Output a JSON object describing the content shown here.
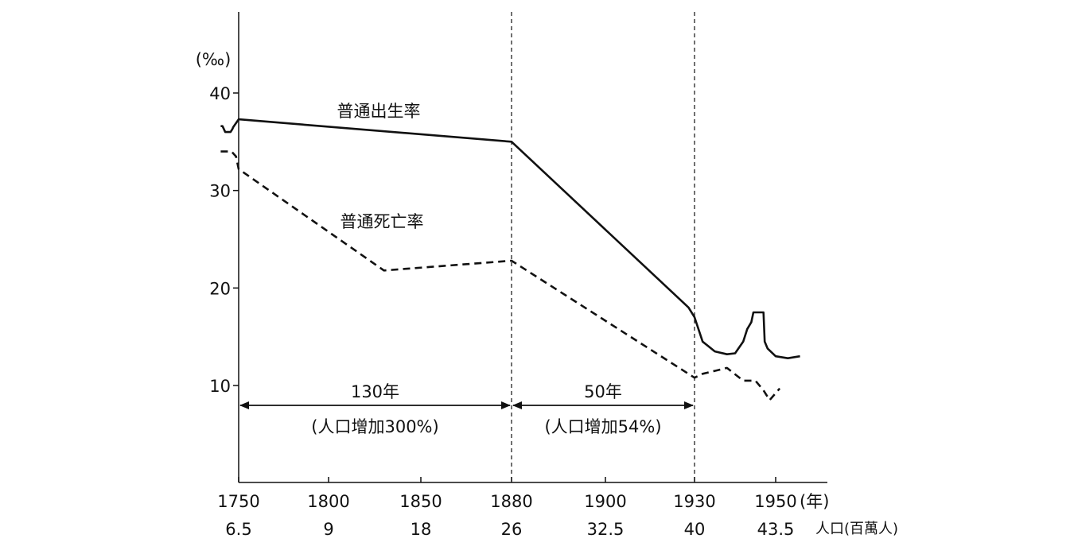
{
  "chart_data": {
    "type": "line",
    "ylabel": "(‰)",
    "ylim": [
      0,
      45
    ],
    "yticks": [
      10,
      20,
      30,
      40
    ],
    "x_unit_label": "(年)",
    "population_label": "人口(百萬人)",
    "x_ticks": [
      {
        "year": 1750,
        "label": "1750",
        "population": "6.5"
      },
      {
        "year": 1800,
        "label": "1800",
        "population": "9"
      },
      {
        "year": 1850,
        "label": "1850",
        "population": "18"
      },
      {
        "year": 1880,
        "label": "1880",
        "population": "26"
      },
      {
        "year": 1900,
        "label": "1900",
        "population": "32.5"
      },
      {
        "year": 1930,
        "label": "1930",
        "population": "40"
      },
      {
        "year": 1950,
        "label": "1950",
        "population": "43.5"
      }
    ],
    "series": [
      {
        "name": "普通出生率",
        "style": "solid",
        "points": [
          [
            1740,
            36.6
          ],
          [
            1741,
            36.6
          ],
          [
            1742.5,
            36
          ],
          [
            1745.5,
            36
          ],
          [
            1746.5,
            36.3
          ],
          [
            1747,
            36.5
          ],
          [
            1750,
            37.3
          ],
          [
            1880,
            35
          ],
          [
            1928,
            18
          ],
          [
            1930,
            17
          ],
          [
            1932,
            14.5
          ],
          [
            1935,
            13.5
          ],
          [
            1938,
            13.2
          ],
          [
            1940,
            13.3
          ],
          [
            1942,
            14.5
          ],
          [
            1943,
            15.8
          ],
          [
            1944,
            16.5
          ],
          [
            1944.5,
            17.5
          ],
          [
            1947,
            17.5
          ],
          [
            1947.3,
            14.5
          ],
          [
            1948,
            13.8
          ],
          [
            1950,
            13
          ],
          [
            1953,
            12.8
          ],
          [
            1956,
            13
          ]
        ]
      },
      {
        "name": "普通死亡率",
        "style": "dashed",
        "points": [
          [
            1740,
            34
          ],
          [
            1746,
            34
          ],
          [
            1748.5,
            33.5
          ],
          [
            1750,
            32.2
          ],
          [
            1830,
            21.8
          ],
          [
            1880,
            22.8
          ],
          [
            1930,
            10.8
          ],
          [
            1932,
            11.2
          ],
          [
            1935,
            11.5
          ],
          [
            1938,
            11.8
          ],
          [
            1942,
            10.5
          ],
          [
            1945,
            10.5
          ],
          [
            1947,
            9.5
          ],
          [
            1948.5,
            8.5
          ],
          [
            1951,
            9.7
          ]
        ]
      }
    ],
    "annotations": [
      {
        "label": "130年",
        "sublabel": "(人口增加300%)",
        "from": 1750,
        "to": 1880
      },
      {
        "label": "50年",
        "sublabel": "(人口增加54%)",
        "from": 1880,
        "to": 1930
      }
    ],
    "reference_lines_years": [
      1880,
      1930
    ]
  }
}
